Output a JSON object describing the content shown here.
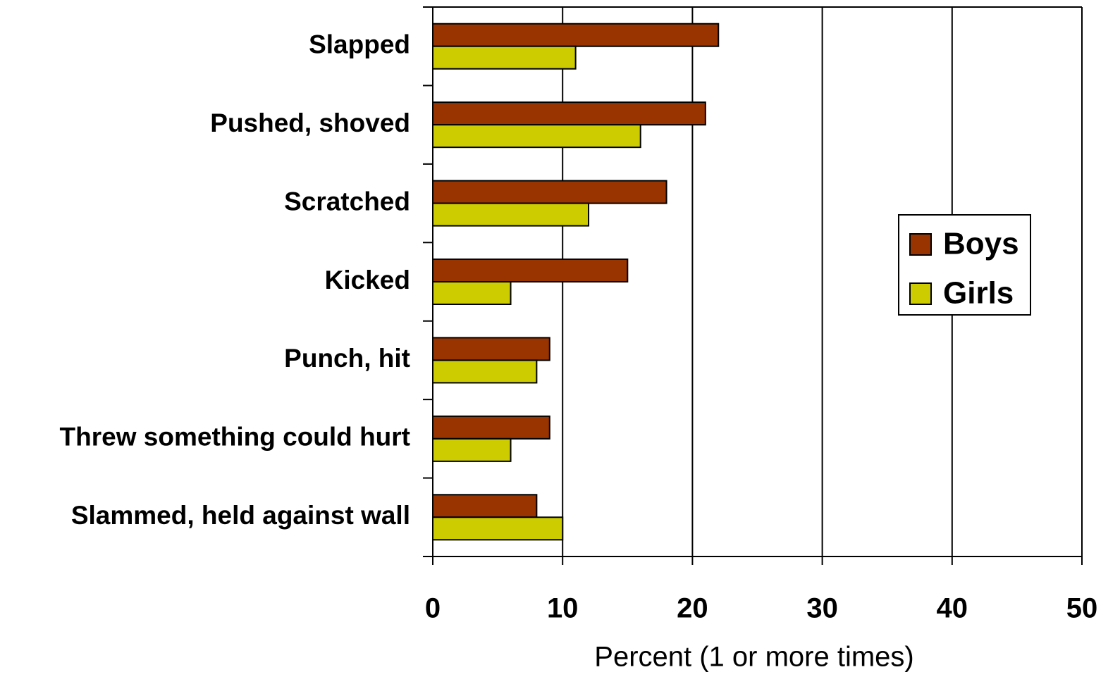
{
  "chart_data": {
    "type": "bar",
    "orientation": "horizontal",
    "categories": [
      "Slapped",
      "Pushed, shoved",
      "Scratched",
      "Kicked",
      "Punch, hit",
      "Threw something could hurt",
      "Slammed, held against wall"
    ],
    "series": [
      {
        "name": "Boys",
        "color": "#993300",
        "values": [
          22,
          21,
          18,
          15,
          9,
          9,
          8
        ]
      },
      {
        "name": "Girls",
        "color": "#cccc00",
        "values": [
          11,
          16,
          12,
          6,
          8,
          6,
          10
        ]
      }
    ],
    "xlabel": "Percent (1 or more times)",
    "xlim": [
      0,
      50
    ],
    "xticks": [
      0,
      10,
      20,
      30,
      40,
      50
    ],
    "grid": true,
    "legend": "right"
  }
}
